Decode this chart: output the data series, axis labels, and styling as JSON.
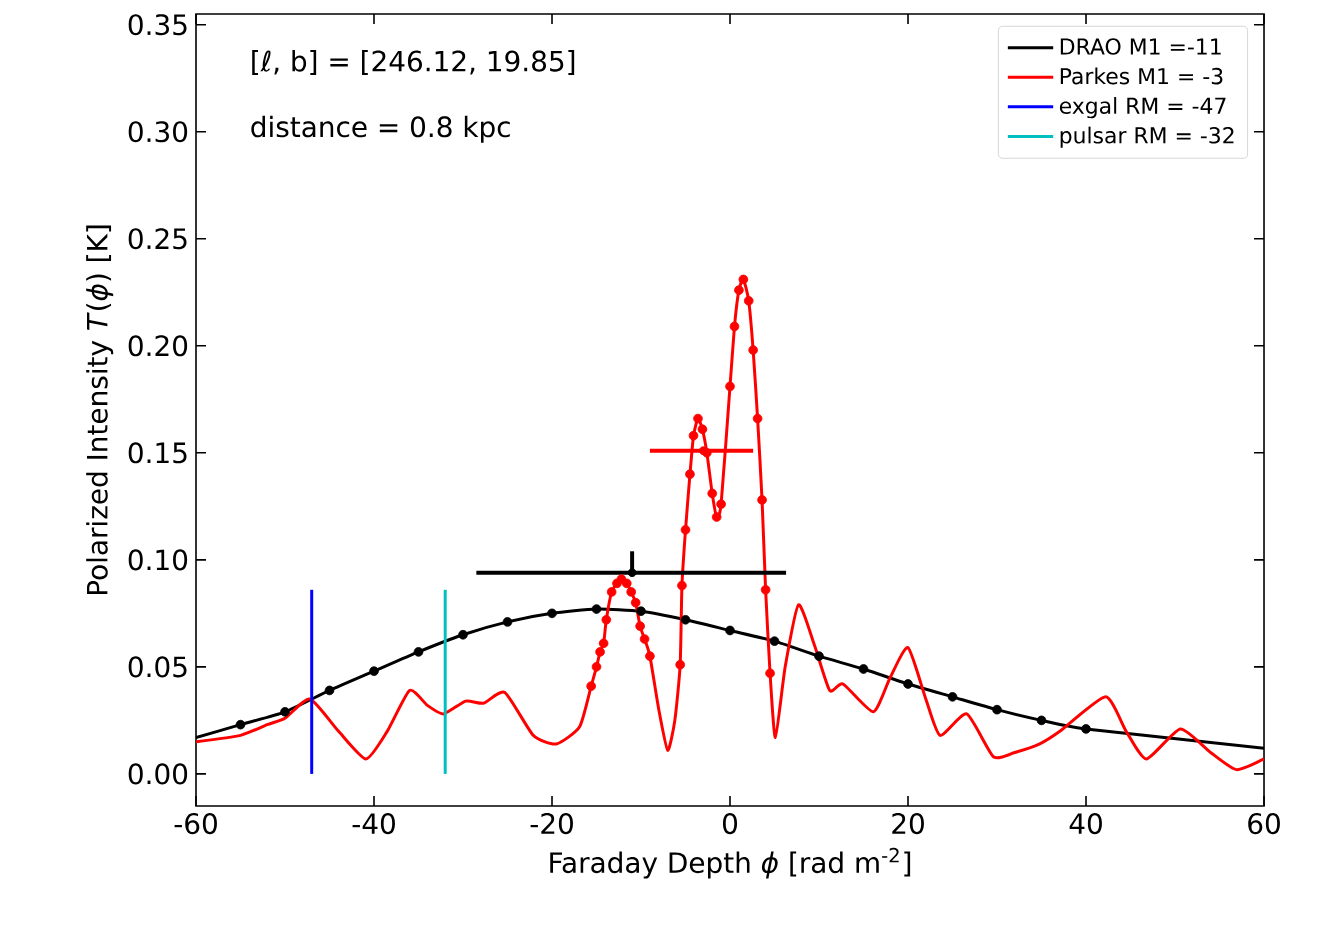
{
  "chart_data": {
    "type": "line",
    "xlabel": "Faraday Depth *ϕ* [rad m$^{-2}$]",
    "ylabel": "Polarized Intensity *T*(*ϕ*) [K]",
    "annotations": [
      "[ℓ, b] = [246.12, 19.85]",
      "distance = 0.8 kpc"
    ],
    "xlim": [
      -60,
      60
    ],
    "ylim": [
      -0.015,
      0.355
    ],
    "xticks": [
      -60,
      -40,
      -20,
      0,
      20,
      40,
      60
    ],
    "yticks": [
      {
        "value": 0,
        "label": "0.00"
      },
      {
        "value": 0.05,
        "label": "0.05"
      },
      {
        "value": 0.1,
        "label": "0.10"
      },
      {
        "value": 0.15,
        "label": "0.15"
      },
      {
        "value": 0.2,
        "label": "0.20"
      },
      {
        "value": 0.25,
        "label": "0.25"
      },
      {
        "value": 0.3,
        "label": "0.30"
      },
      {
        "value": 0.35,
        "label": "0.35"
      }
    ],
    "grid": false,
    "legend": "top right",
    "series": [
      {
        "name": "DRAO M1 =-11",
        "color": "#000000",
        "x": [
          -60,
          -55,
          -50,
          -45,
          -40,
          -35,
          -30,
          -25,
          -20,
          -15,
          -10,
          -5,
          0,
          5,
          10,
          15,
          20,
          25,
          30,
          35,
          40,
          60
        ],
        "values": [
          0.017,
          0.023,
          0.029,
          0.039,
          0.048,
          0.057,
          0.065,
          0.071,
          0.075,
          0.077,
          0.076,
          0.072,
          0.067,
          0.062,
          0.055,
          0.049,
          0.042,
          0.036,
          0.03,
          0.025,
          0.021,
          0.012
        ]
      },
      {
        "name": "Parkes M1 = -3",
        "color": "#ff0000",
        "x": [
          -60,
          -55,
          -52,
          -50,
          -47.2,
          -44,
          -40.9,
          -38.5,
          -36,
          -34,
          -32.2,
          -29.7,
          -27.7,
          -25.3,
          -22.1,
          -19.5,
          -16.9,
          -15.6,
          -15.0,
          -14.6,
          -14.2,
          -13.9,
          -13.3,
          -12.7,
          -12.2,
          -11.6,
          -11.1,
          -10.6,
          -10.1,
          -9.6,
          -9.0,
          -8,
          -7,
          -6.2,
          -5.6,
          -5.4,
          -5.0,
          -4.5,
          -4.1,
          -3.6,
          -3.1,
          -2.6,
          -2.0,
          -1.5,
          -1.0,
          0.0,
          0.5,
          1.0,
          1.5,
          2.1,
          2.6,
          3.1,
          3.6,
          4.0,
          4.5,
          5.1,
          6.2,
          7.7,
          9.5,
          11.2,
          12.7,
          16.1,
          18,
          20.0,
          22,
          23.6,
          26.6,
          29.6,
          32,
          34.8,
          37.1,
          42.2,
          44.5,
          46.8,
          50.6,
          54,
          56.9,
          60
        ],
        "values": [
          0.015,
          0.018,
          0.023,
          0.026,
          0.035,
          0.02,
          0.007,
          0.02,
          0.039,
          0.032,
          0.028,
          0.034,
          0.033,
          0.038,
          0.018,
          0.014,
          0.022,
          0.041,
          0.05,
          0.057,
          0.061,
          0.072,
          0.085,
          0.089,
          0.091,
          0.089,
          0.085,
          0.08,
          0.069,
          0.063,
          0.055,
          0.03,
          0.011,
          0.025,
          0.051,
          0.088,
          0.114,
          0.14,
          0.158,
          0.166,
          0.161,
          0.15,
          0.131,
          0.12,
          0.126,
          0.181,
          0.209,
          0.226,
          0.231,
          0.221,
          0.198,
          0.166,
          0.128,
          0.086,
          0.047,
          0.017,
          0.05,
          0.079,
          0.06,
          0.039,
          0.042,
          0.029,
          0.045,
          0.059,
          0.035,
          0.018,
          0.028,
          0.008,
          0.01,
          0.014,
          0.02,
          0.036,
          0.02,
          0.007,
          0.021,
          0.01,
          0.002,
          0.007
        ]
      },
      {
        "name": "exgal RM = -47",
        "color": "#0000ff",
        "x": [
          -47,
          -47
        ],
        "values": [
          0,
          0.086
        ]
      },
      {
        "name": "pulsar RM = -32",
        "color": "#00bfbf",
        "x": [
          -32,
          -32
        ],
        "values": [
          0,
          0.086
        ]
      },
      {
        "color": "#000000",
        "type": "scatter",
        "marker": "circle",
        "x": [
          -55,
          -50,
          -45,
          -40,
          -35,
          -30,
          -25,
          -20,
          -15,
          -10,
          -5,
          0,
          5,
          10,
          15,
          20,
          25,
          30,
          35,
          40
        ],
        "values": [
          0.023,
          0.029,
          0.039,
          0.048,
          0.057,
          0.065,
          0.071,
          0.075,
          0.077,
          0.076,
          0.072,
          0.067,
          0.062,
          0.055,
          0.049,
          0.042,
          0.036,
          0.03,
          0.025,
          0.021
        ]
      },
      {
        "color": "#ff0000",
        "type": "scatter",
        "marker": "circle",
        "x": [
          -15.6,
          -15.0,
          -14.6,
          -14.2,
          -13.9,
          -13.3,
          -12.7,
          -12.2,
          -11.6,
          -11.1,
          -10.6,
          -10.1,
          -9.6,
          -9.0,
          -5.6,
          -5.4,
          -5.0,
          -4.5,
          -4.1,
          -3.6,
          -3.1,
          -2.6,
          -2.0,
          -1.5,
          -1.0,
          0.0,
          0.5,
          1.0,
          1.5,
          2.1,
          2.6,
          3.1,
          3.6,
          4.0,
          4.5
        ],
        "values": [
          0.041,
          0.05,
          0.057,
          0.061,
          0.072,
          0.085,
          0.089,
          0.091,
          0.089,
          0.085,
          0.08,
          0.069,
          0.063,
          0.055,
          0.051,
          0.088,
          0.114,
          0.14,
          0.158,
          0.166,
          0.161,
          0.15,
          0.131,
          0.12,
          0.126,
          0.181,
          0.209,
          0.226,
          0.231,
          0.221,
          0.198,
          0.166,
          0.128,
          0.086,
          0.047
        ]
      },
      {
        "color": "#000000",
        "type": "scatter",
        "x": [
          -11
        ],
        "values": [
          0.094
        ],
        "xerrors": [
          [
            -28.5,
            6.3
          ]
        ],
        "errors": [
          [
            0.094,
            0.104
          ]
        ]
      },
      {
        "color": "#ff0000",
        "type": "scatter",
        "x": [
          -3
        ],
        "values": [
          0.151
        ],
        "xerrors": [
          [
            -9.0,
            2.6
          ]
        ]
      }
    ]
  }
}
